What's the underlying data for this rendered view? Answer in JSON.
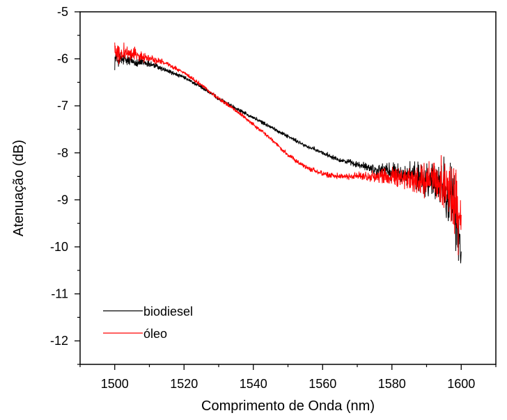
{
  "chart_data": {
    "type": "line",
    "title": "",
    "xlabel": "Comprimento de Onda (nm)",
    "ylabel": "Atenuação (dB)",
    "xlim": [
      1490,
      1610
    ],
    "ylim": [
      -12.5,
      -5
    ],
    "xticks": [
      1500,
      1520,
      1540,
      1560,
      1580,
      1600
    ],
    "xtick_labels": [
      "1500",
      "1520",
      "1540",
      "1560",
      "1580",
      "1600"
    ],
    "yticks": [
      -5,
      -6,
      -7,
      -8,
      -9,
      -10,
      -11,
      -12
    ],
    "ytick_labels": [
      "-5",
      "-6",
      "-7",
      "-8",
      "-9",
      "-10",
      "-11",
      "-12"
    ],
    "grid": false,
    "legend_position": "bottom-left",
    "series": [
      {
        "name": "biodiesel",
        "color": "#000000",
        "x": [
          1500,
          1505,
          1510,
          1515,
          1520,
          1525,
          1530,
          1535,
          1540,
          1545,
          1550,
          1555,
          1560,
          1565,
          1570,
          1575,
          1580,
          1585,
          1590,
          1593,
          1595,
          1597,
          1598,
          1599,
          1600
        ],
        "y": [
          -6.0,
          -6.05,
          -6.1,
          -6.25,
          -6.4,
          -6.6,
          -6.85,
          -7.05,
          -7.25,
          -7.45,
          -7.65,
          -7.85,
          -8.0,
          -8.15,
          -8.25,
          -8.35,
          -8.4,
          -8.5,
          -8.55,
          -8.6,
          -8.7,
          -8.9,
          -9.2,
          -9.6,
          -10.2
        ],
        "noise": [
          0.25,
          0.15,
          0.1,
          0.06,
          0.05,
          0.05,
          0.05,
          0.05,
          0.05,
          0.05,
          0.05,
          0.05,
          0.06,
          0.07,
          0.08,
          0.15,
          0.25,
          0.35,
          0.45,
          0.55,
          0.7,
          0.8,
          0.9,
          1.0,
          0.6
        ]
      },
      {
        "name": "óleo",
        "color": "#ff0000",
        "x": [
          1500,
          1505,
          1510,
          1515,
          1520,
          1525,
          1530,
          1535,
          1540,
          1545,
          1550,
          1555,
          1560,
          1565,
          1570,
          1575,
          1580,
          1585,
          1590,
          1593,
          1595,
          1597,
          1598,
          1599,
          1600
        ],
        "y": [
          -5.85,
          -5.9,
          -6.0,
          -6.1,
          -6.3,
          -6.55,
          -6.85,
          -7.1,
          -7.4,
          -7.7,
          -8.05,
          -8.3,
          -8.45,
          -8.5,
          -8.5,
          -8.5,
          -8.5,
          -8.55,
          -8.6,
          -8.65,
          -8.75,
          -8.85,
          -9.0,
          -9.3,
          -9.5
        ],
        "noise": [
          0.3,
          0.2,
          0.1,
          0.06,
          0.05,
          0.05,
          0.05,
          0.05,
          0.05,
          0.05,
          0.06,
          0.06,
          0.07,
          0.08,
          0.1,
          0.15,
          0.25,
          0.35,
          0.45,
          0.6,
          0.8,
          1.0,
          1.3,
          1.0,
          0.5
        ]
      }
    ]
  }
}
